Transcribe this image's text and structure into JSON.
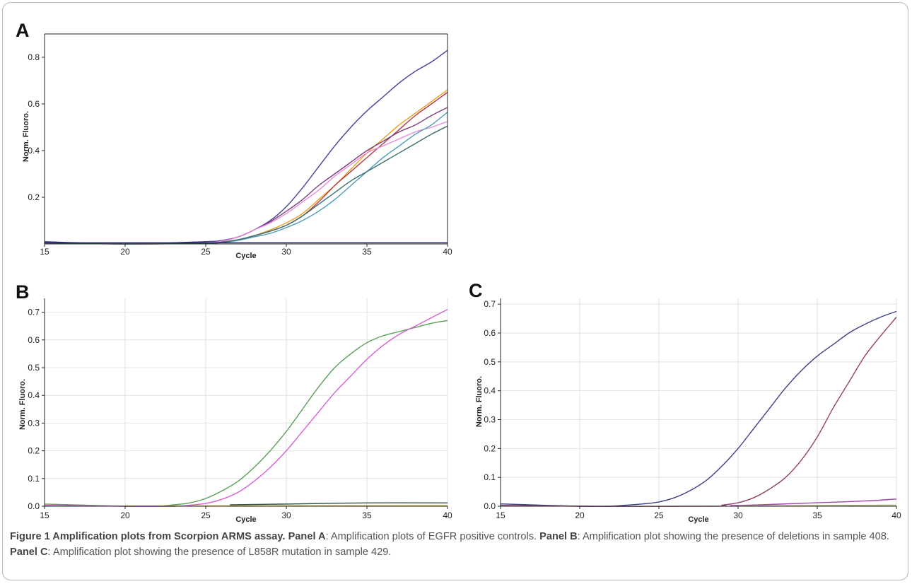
{
  "chart_data": [
    {
      "panel": "A",
      "type": "line",
      "xlabel": "Cycle",
      "ylabel": "Norm. Fluoro.",
      "xlim": [
        15,
        40
      ],
      "ylim": [
        0,
        0.9
      ],
      "xticks": [
        15,
        20,
        25,
        30,
        35,
        40
      ],
      "yticks": [
        0.2,
        0.4,
        0.6,
        0.8
      ],
      "grid": false,
      "series": [
        {
          "color": "#4a3d9a",
          "x": [
            15,
            20,
            25,
            26,
            27,
            28,
            29,
            30,
            31,
            32,
            33,
            34,
            35,
            36,
            37,
            38,
            39,
            40
          ],
          "y": [
            0.01,
            0.0,
            0.01,
            0.015,
            0.03,
            0.06,
            0.1,
            0.16,
            0.24,
            0.33,
            0.42,
            0.5,
            0.57,
            0.63,
            0.69,
            0.74,
            0.78,
            0.83
          ]
        },
        {
          "color": "#e7a021",
          "x": [
            15,
            20,
            25,
            26,
            27,
            28,
            29,
            30,
            31,
            32,
            33,
            34,
            35,
            36,
            37,
            38,
            39,
            40
          ],
          "y": [
            0.005,
            0.0,
            0.003,
            0.008,
            0.018,
            0.035,
            0.06,
            0.09,
            0.13,
            0.19,
            0.25,
            0.32,
            0.39,
            0.45,
            0.51,
            0.56,
            0.61,
            0.66
          ]
        },
        {
          "color": "#b03a46",
          "x": [
            15,
            20,
            25,
            26,
            27,
            28,
            29,
            30,
            31,
            32,
            33,
            34,
            35,
            36,
            37,
            38,
            39,
            40
          ],
          "y": [
            0.005,
            0.0,
            0.003,
            0.008,
            0.018,
            0.035,
            0.055,
            0.08,
            0.12,
            0.18,
            0.25,
            0.31,
            0.37,
            0.43,
            0.49,
            0.55,
            0.6,
            0.65
          ]
        },
        {
          "color": "#7a3e7e",
          "x": [
            15,
            20,
            25,
            26,
            27,
            28,
            29,
            30,
            31,
            32,
            33,
            34,
            35,
            36,
            37,
            38,
            39,
            40
          ],
          "y": [
            0.005,
            0.0,
            0.005,
            0.012,
            0.03,
            0.06,
            0.095,
            0.14,
            0.19,
            0.25,
            0.3,
            0.35,
            0.4,
            0.44,
            0.48,
            0.51,
            0.55,
            0.585
          ]
        },
        {
          "color": "#e88bd8",
          "x": [
            15,
            20,
            25,
            26,
            27,
            28,
            29,
            30,
            31,
            32,
            33,
            34,
            35,
            36,
            37,
            38,
            39,
            40
          ],
          "y": [
            0.005,
            0.0,
            0.005,
            0.012,
            0.03,
            0.06,
            0.09,
            0.13,
            0.18,
            0.23,
            0.29,
            0.34,
            0.39,
            0.42,
            0.45,
            0.48,
            0.5,
            0.525
          ]
        },
        {
          "color": "#4c9bb8",
          "x": [
            15,
            20,
            25,
            26,
            27,
            28,
            29,
            30,
            31,
            32,
            33,
            34,
            35,
            36,
            37,
            38,
            39,
            40
          ],
          "y": [
            0.005,
            0.0,
            0.003,
            0.006,
            0.015,
            0.03,
            0.045,
            0.07,
            0.1,
            0.14,
            0.19,
            0.25,
            0.31,
            0.37,
            0.42,
            0.47,
            0.51,
            0.565
          ]
        },
        {
          "color": "#3a6f6b",
          "x": [
            15,
            20,
            25,
            26,
            27,
            28,
            29,
            30,
            31,
            32,
            33,
            34,
            35,
            36,
            37,
            38,
            39,
            40
          ],
          "y": [
            0.005,
            0.0,
            0.003,
            0.008,
            0.018,
            0.035,
            0.055,
            0.08,
            0.12,
            0.17,
            0.22,
            0.27,
            0.31,
            0.35,
            0.39,
            0.43,
            0.47,
            0.505
          ]
        },
        {
          "color": "#1b1b6e",
          "x": [
            15,
            40
          ],
          "y": [
            0.005,
            0.005
          ]
        }
      ]
    },
    {
      "panel": "B",
      "type": "line",
      "xlabel": "Cycle",
      "ylabel": "Norm. Fluoro.",
      "xlim": [
        15,
        40
      ],
      "ylim": [
        0,
        0.75
      ],
      "xticks": [
        15,
        20,
        25,
        30,
        35,
        40
      ],
      "yticks": [
        0.0,
        0.1,
        0.2,
        0.3,
        0.4,
        0.5,
        0.6,
        0.7
      ],
      "ytick_labels": [
        "0.0",
        "0.1",
        "0.2",
        "0.3",
        "0.4",
        "0.5",
        "0.6",
        "0.7"
      ],
      "grid": true,
      "series": [
        {
          "color": "#5b9e5a",
          "x": [
            15,
            18,
            20,
            22,
            23,
            24,
            25,
            26,
            27,
            28,
            29,
            30,
            31,
            32,
            33,
            34,
            35,
            36,
            37,
            38,
            39,
            40
          ],
          "y": [
            0.008,
            0.003,
            0.0,
            0.0,
            0.005,
            0.012,
            0.028,
            0.055,
            0.09,
            0.14,
            0.2,
            0.27,
            0.35,
            0.43,
            0.5,
            0.55,
            0.59,
            0.615,
            0.63,
            0.645,
            0.66,
            0.67
          ]
        },
        {
          "color": "#d65fd6",
          "x": [
            15,
            20,
            23,
            24,
            25,
            26,
            27,
            28,
            29,
            30,
            31,
            32,
            33,
            34,
            35,
            36,
            37,
            38,
            39,
            40
          ],
          "y": [
            0.003,
            0.0,
            0.0,
            0.004,
            0.01,
            0.025,
            0.05,
            0.09,
            0.14,
            0.2,
            0.27,
            0.34,
            0.41,
            0.47,
            0.53,
            0.58,
            0.62,
            0.65,
            0.68,
            0.71
          ]
        },
        {
          "color": "#2f4f3a",
          "x": [
            26.5,
            30,
            35,
            40
          ],
          "y": [
            0.005,
            0.008,
            0.012,
            0.012
          ]
        },
        {
          "color": "#c8b02a",
          "x": [
            20,
            40
          ],
          "y": [
            0.001,
            0.002
          ]
        }
      ]
    },
    {
      "panel": "C",
      "type": "line",
      "xlabel": "Cycle",
      "ylabel": "Norm. Fluoro.",
      "xlim": [
        15,
        40
      ],
      "ylim": [
        0,
        0.72
      ],
      "xticks": [
        15,
        20,
        25,
        30,
        35,
        40
      ],
      "yticks": [
        0.0,
        0.1,
        0.2,
        0.3,
        0.4,
        0.5,
        0.6,
        0.7
      ],
      "ytick_labels": [
        "0.0",
        "0.1",
        "0.2",
        "0.3",
        "0.4",
        "0.5",
        "0.6",
        "0.7"
      ],
      "grid": true,
      "series": [
        {
          "color": "#3d3f86",
          "x": [
            15,
            18,
            20,
            22,
            23,
            24,
            25,
            26,
            27,
            28,
            29,
            30,
            31,
            32,
            33,
            34,
            35,
            36,
            37,
            38,
            39,
            40
          ],
          "y": [
            0.008,
            0.003,
            0.0,
            0.0,
            0.004,
            0.008,
            0.015,
            0.03,
            0.055,
            0.09,
            0.14,
            0.2,
            0.27,
            0.34,
            0.41,
            0.47,
            0.52,
            0.56,
            0.6,
            0.63,
            0.655,
            0.675
          ]
        },
        {
          "color": "#94406e",
          "x": [
            15,
            20,
            28.5,
            29,
            30,
            31,
            32,
            33,
            34,
            35,
            36,
            37,
            38,
            39,
            40
          ],
          "y": [
            0.003,
            0.0,
            0.0,
            0.004,
            0.012,
            0.03,
            0.06,
            0.1,
            0.16,
            0.24,
            0.34,
            0.43,
            0.52,
            0.59,
            0.655
          ]
        },
        {
          "color": "#a044b0",
          "x": [
            29.5,
            32,
            35,
            38,
            40
          ],
          "y": [
            0.002,
            0.006,
            0.012,
            0.018,
            0.025
          ]
        },
        {
          "color": "#a7b070",
          "x": [
            30,
            40
          ],
          "y": [
            0.001,
            0.004
          ]
        }
      ]
    }
  ],
  "panels": {
    "a_letter": "A",
    "b_letter": "B",
    "c_letter": "C"
  },
  "caption": {
    "title": "Figure 1 Amplification plots from Scorpion ARMS assay.",
    "a_label": "Panel A",
    "a_text": ": Amplification plots of EGFR positive controls.",
    "b_label": "Panel B",
    "b_text": ": Amplification plot showing the presence of deletions in sample 408.",
    "c_label": "Panel C",
    "c_text": ": Amplification plot showing the presence of L858R mutation in sample 429."
  }
}
